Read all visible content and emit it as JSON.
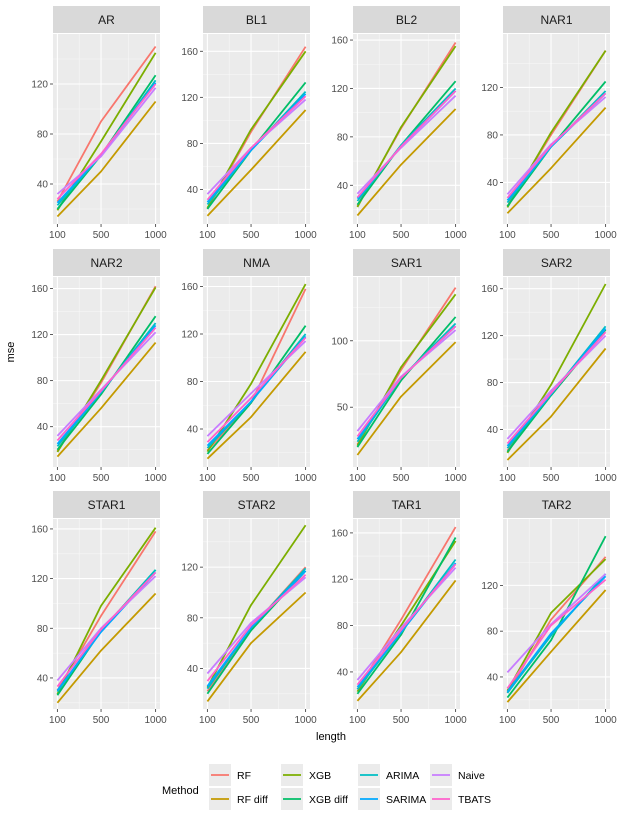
{
  "chart_data": {
    "type": "line",
    "facet_layout": "4 columns x 3 rows",
    "xlabel": "length",
    "ylabel": "mse",
    "x": [
      100,
      500,
      1000
    ],
    "x_ticks": [
      100,
      500,
      1000
    ],
    "legend": {
      "title": "Method",
      "position": "bottom",
      "entries": [
        {
          "name": "RF",
          "color": "#F8766D"
        },
        {
          "name": "RF diff",
          "color": "#C49A00"
        },
        {
          "name": "XGB",
          "color": "#7CAE00"
        },
        {
          "name": "XGB diff",
          "color": "#00BE67"
        },
        {
          "name": "ARIMA",
          "color": "#00BFC4"
        },
        {
          "name": "SARIMA",
          "color": "#00A9FF"
        },
        {
          "name": "Naive",
          "color": "#C77CFF"
        },
        {
          "name": "TBATS",
          "color": "#FF61CC"
        }
      ]
    },
    "panels": [
      {
        "title": "AR",
        "ylim": [
          8,
          160
        ],
        "y_ticks": [
          40,
          80,
          120
        ],
        "series": {
          "RF": [
            26,
            90,
            150
          ],
          "RF diff": [
            14,
            50,
            106
          ],
          "XGB": [
            19,
            74,
            145
          ],
          "XGB diff": [
            20,
            63,
            127
          ],
          "ARIMA": [
            23,
            63,
            123
          ],
          "SARIMA": [
            25,
            63,
            121
          ],
          "Naive": [
            32,
            62,
            117
          ],
          "TBATS": [
            28,
            64,
            120
          ]
        }
      },
      {
        "title": "BL1",
        "ylim": [
          10,
          175
        ],
        "y_ticks": [
          40,
          80,
          120,
          160
        ],
        "series": {
          "RF": [
            23,
            90,
            164
          ],
          "RF diff": [
            17,
            57,
            109
          ],
          "XGB": [
            24,
            92,
            160
          ],
          "XGB diff": [
            23,
            74,
            133
          ],
          "ARIMA": [
            27,
            74,
            125
          ],
          "SARIMA": [
            29,
            74,
            123
          ],
          "Naive": [
            36,
            76,
            118
          ],
          "TBATS": [
            31,
            76,
            121
          ]
        }
      },
      {
        "title": "BL2",
        "ylim": [
          8,
          165
        ],
        "y_ticks": [
          40,
          80,
          120,
          160
        ],
        "series": {
          "RF": [
            23,
            87,
            158
          ],
          "RF diff": [
            15,
            57,
            103
          ],
          "XGB": [
            22,
            88,
            155
          ],
          "XGB diff": [
            24,
            73,
            126
          ],
          "ARIMA": [
            27,
            73,
            120
          ],
          "SARIMA": [
            29,
            72,
            118
          ],
          "Naive": [
            33,
            71,
            114
          ],
          "TBATS": [
            30,
            72,
            118
          ]
        }
      },
      {
        "title": "NAR1",
        "ylim": [
          5,
          165
        ],
        "y_ticks": [
          40,
          80,
          120
        ],
        "series": {
          "RF": [
            20,
            80,
            151
          ],
          "RF diff": [
            14,
            52,
            103
          ],
          "XGB": [
            19,
            82,
            151
          ],
          "XGB diff": [
            20,
            70,
            125
          ],
          "ARIMA": [
            23,
            70,
            117
          ],
          "SARIMA": [
            25,
            70,
            115
          ],
          "Naive": [
            30,
            72,
            112
          ],
          "TBATS": [
            27,
            71,
            115
          ]
        }
      },
      {
        "title": "NAR2",
        "ylim": [
          5,
          170
        ],
        "y_ticks": [
          40,
          80,
          120,
          160
        ],
        "series": {
          "RF": [
            19,
            78,
            162
          ],
          "RF diff": [
            14,
            56,
            113
          ],
          "XGB": [
            18,
            80,
            161
          ],
          "XGB diff": [
            20,
            68,
            136
          ],
          "ARIMA": [
            23,
            70,
            130
          ],
          "SARIMA": [
            25,
            70,
            128
          ],
          "Naive": [
            32,
            72,
            122
          ],
          "TBATS": [
            28,
            71,
            126
          ]
        }
      },
      {
        "title": "NMA",
        "ylim": [
          8,
          168
        ],
        "y_ticks": [
          40,
          80,
          120,
          160
        ],
        "series": {
          "RF": [
            22,
            62,
            158
          ],
          "RF diff": [
            15,
            50,
            105
          ],
          "XGB": [
            21,
            78,
            162
          ],
          "XGB diff": [
            19,
            62,
            127
          ],
          "ARIMA": [
            24,
            63,
            120
          ],
          "SARIMA": [
            26,
            63,
            118
          ],
          "Naive": [
            34,
            70,
            114
          ],
          "TBATS": [
            29,
            66,
            117
          ]
        }
      },
      {
        "title": "SAR1",
        "ylim": [
          5,
          148
        ],
        "y_ticks": [
          50,
          100
        ],
        "series": {
          "RF": [
            22,
            78,
            140
          ],
          "RF diff": [
            14,
            58,
            99
          ],
          "XGB": [
            21,
            80,
            135
          ],
          "XGB diff": [
            20,
            70,
            118
          ],
          "ARIMA": [
            24,
            72,
            113
          ],
          "SARIMA": [
            26,
            72,
            111
          ],
          "Naive": [
            32,
            73,
            108
          ],
          "TBATS": [
            28,
            72,
            111
          ]
        }
      },
      {
        "title": "SAR2",
        "ylim": [
          8,
          170
        ],
        "y_ticks": [
          40,
          80,
          120,
          160
        ],
        "series": {
          "RF": [
            22,
            70,
            125
          ],
          "RF diff": [
            14,
            51,
            109
          ],
          "XGB": [
            20,
            78,
            164
          ],
          "XGB diff": [
            21,
            69,
            125
          ],
          "ARIMA": [
            24,
            70,
            128
          ],
          "SARIMA": [
            26,
            70,
            126
          ],
          "Naive": [
            32,
            73,
            120
          ],
          "TBATS": [
            28,
            71,
            123
          ]
        }
      },
      {
        "title": "STAR1",
        "ylim": [
          15,
          168
        ],
        "y_ticks": [
          40,
          80,
          120,
          160
        ],
        "series": {
          "RF": [
            30,
            90,
            158
          ],
          "RF diff": [
            20,
            62,
            108
          ],
          "XGB": [
            27,
            98,
            161
          ],
          "XGB diff": [
            26,
            78,
            127
          ],
          "ARIMA": [
            29,
            78,
            127
          ],
          "SARIMA": [
            30,
            77,
            125
          ],
          "Naive": [
            38,
            80,
            122
          ],
          "TBATS": [
            33,
            79,
            125
          ]
        }
      },
      {
        "title": "STAR2",
        "ylim": [
          8,
          158
        ],
        "y_ticks": [
          40,
          80,
          120
        ],
        "series": {
          "RF": [
            22,
            72,
            120
          ],
          "RF diff": [
            14,
            60,
            100
          ],
          "XGB": [
            25,
            90,
            153
          ],
          "XGB diff": [
            20,
            70,
            117
          ],
          "ARIMA": [
            24,
            72,
            119
          ],
          "SARIMA": [
            26,
            72,
            117
          ],
          "Naive": [
            36,
            76,
            112
          ],
          "TBATS": [
            30,
            74,
            114
          ]
        }
      },
      {
        "title": "TAR1",
        "ylim": [
          8,
          172
        ],
        "y_ticks": [
          40,
          80,
          120,
          160
        ],
        "series": {
          "RF": [
            25,
            85,
            165
          ],
          "RF diff": [
            15,
            57,
            119
          ],
          "XGB": [
            23,
            80,
            153
          ],
          "XGB diff": [
            21,
            72,
            156
          ],
          "ARIMA": [
            25,
            74,
            137
          ],
          "SARIMA": [
            27,
            74,
            134
          ],
          "Naive": [
            33,
            78,
            130
          ],
          "TBATS": [
            29,
            76,
            133
          ]
        }
      },
      {
        "title": "TAR2",
        "ylim": [
          12,
          178
        ],
        "y_ticks": [
          40,
          80,
          120
        ],
        "series": {
          "RF": [
            26,
            90,
            145
          ],
          "RF diff": [
            18,
            62,
            116
          ],
          "XGB": [
            28,
            96,
            143
          ],
          "XGB diff": [
            22,
            72,
            163
          ],
          "ARIMA": [
            26,
            76,
            130
          ],
          "SARIMA": [
            27,
            78,
            128
          ],
          "Naive": [
            44,
            86,
            130
          ],
          "TBATS": [
            30,
            85,
            125
          ]
        }
      }
    ]
  }
}
